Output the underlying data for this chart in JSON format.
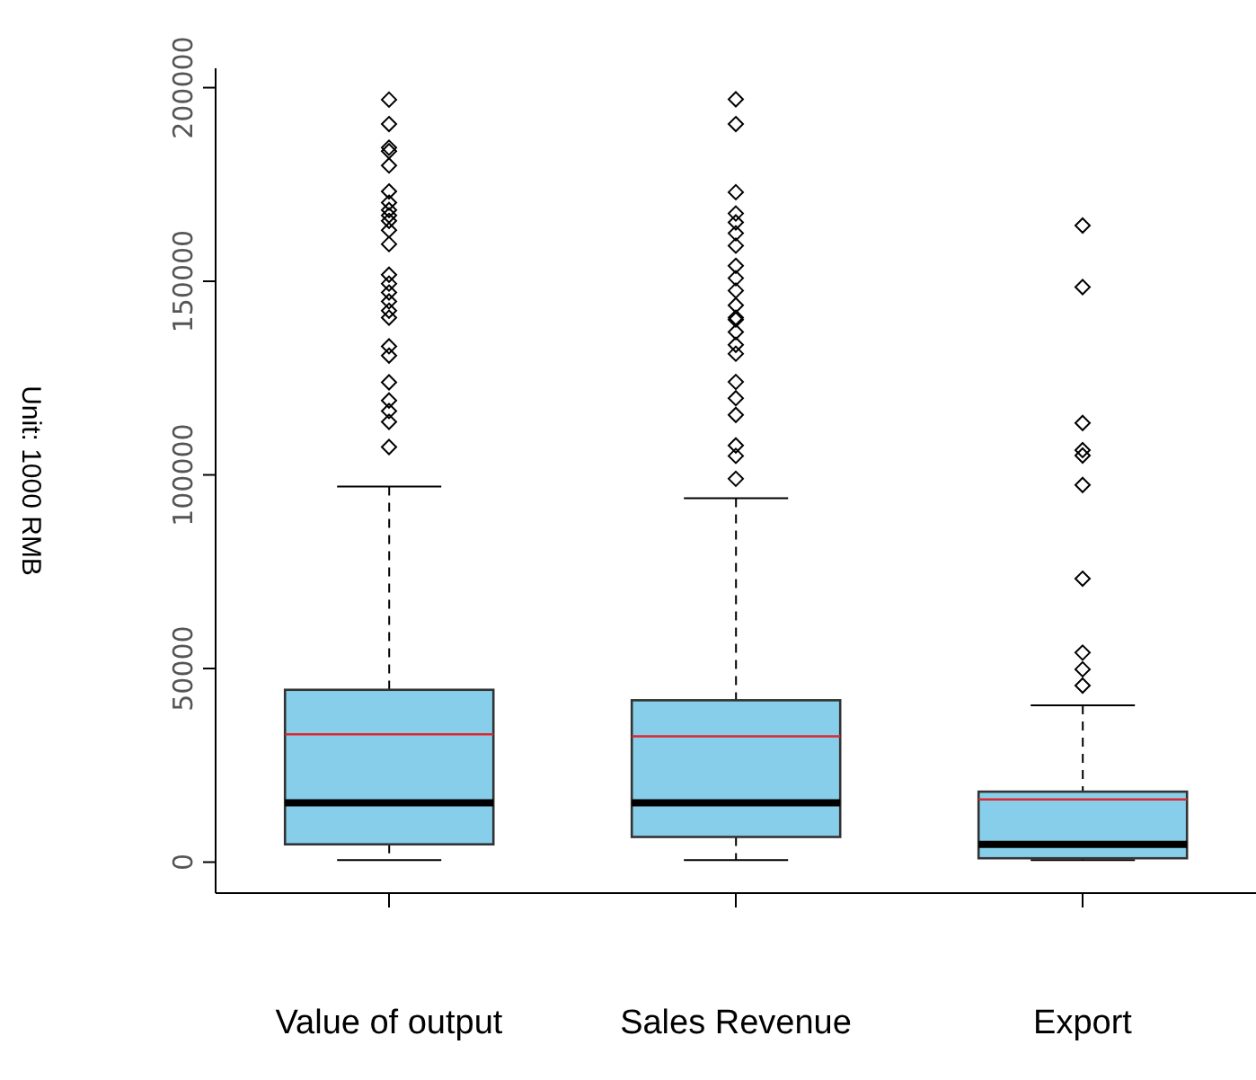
{
  "chart_data": {
    "type": "box",
    "ylabel": "Unit: 1000 RMB",
    "categories": [
      "Value of output",
      "Sales Revenue",
      "Export"
    ],
    "color": "#87ceeb",
    "ylim": [
      -8000,
      205000
    ],
    "yticks": [
      0,
      50000,
      100000,
      150000,
      200000
    ],
    "boxes": [
      {
        "low": 500,
        "q1": 4600,
        "median": 15300,
        "q3": 44500,
        "high": 97000,
        "mean": 33000,
        "outliers": [
          196900,
          190600,
          184500,
          183600,
          179900,
          173200,
          170300,
          168400,
          167000,
          165600,
          163200,
          159600,
          151700,
          149400,
          147100,
          144800,
          142400,
          140600,
          133200,
          130800,
          123900,
          119200,
          116500,
          113700,
          107200
        ]
      },
      {
        "low": 500,
        "q1": 6500,
        "median": 15300,
        "q3": 41800,
        "high": 94000,
        "mean": 32500,
        "outliers": [
          197000,
          190600,
          173000,
          167500,
          165200,
          162400,
          159200,
          154000,
          150800,
          147600,
          143800,
          140600,
          140100,
          136900,
          133600,
          131300,
          124000,
          119800,
          115500,
          107600,
          104900,
          99000
        ]
      },
      {
        "low": 500,
        "q1": 1000,
        "median": 4600,
        "q3": 18200,
        "high": 40500,
        "mean": 16200,
        "outliers": [
          164400,
          148500,
          113400,
          106400,
          105000,
          97400,
          73200,
          54100,
          49800,
          45600
        ]
      }
    ]
  }
}
